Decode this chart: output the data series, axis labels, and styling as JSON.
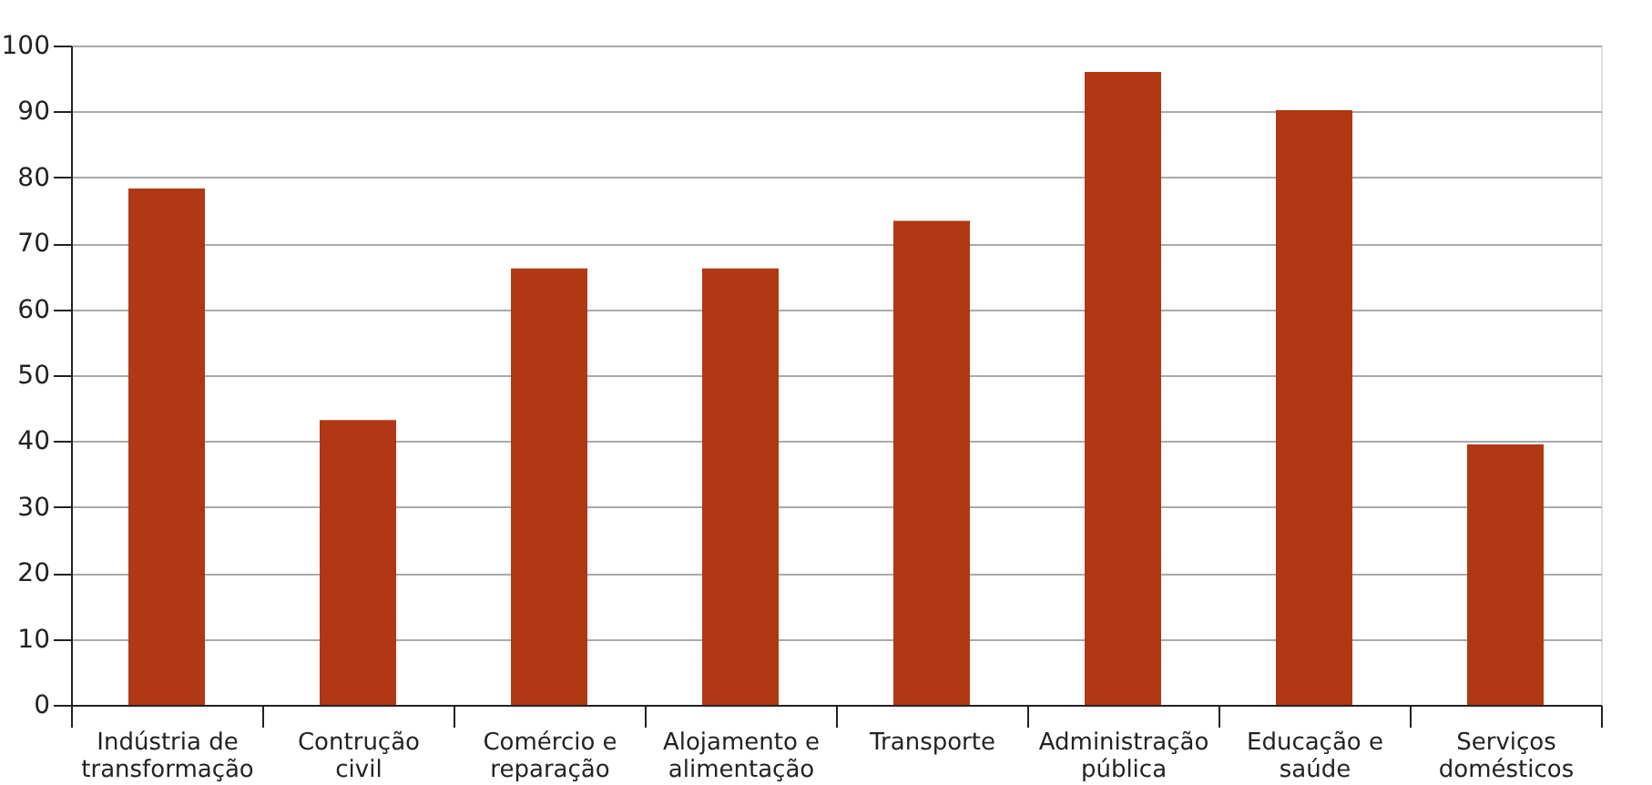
{
  "chart_data": {
    "type": "bar",
    "categories": [
      "Indústria de transformação",
      "Contrução civil",
      "Comércio e reparação",
      "Alojamento e alimentação",
      "Transporte",
      "Administração pública",
      "Educação e saúde",
      "Serviços domésticos"
    ],
    "values": [
      78.3,
      43.2,
      66.2,
      66.2,
      73.4,
      96.0,
      90.2,
      39.5
    ],
    "color": "#b03815",
    "ylim": [
      0,
      100
    ],
    "yticks": [
      0,
      10,
      20,
      30,
      40,
      50,
      60,
      70,
      80,
      90,
      100
    ],
    "grid": "y"
  }
}
